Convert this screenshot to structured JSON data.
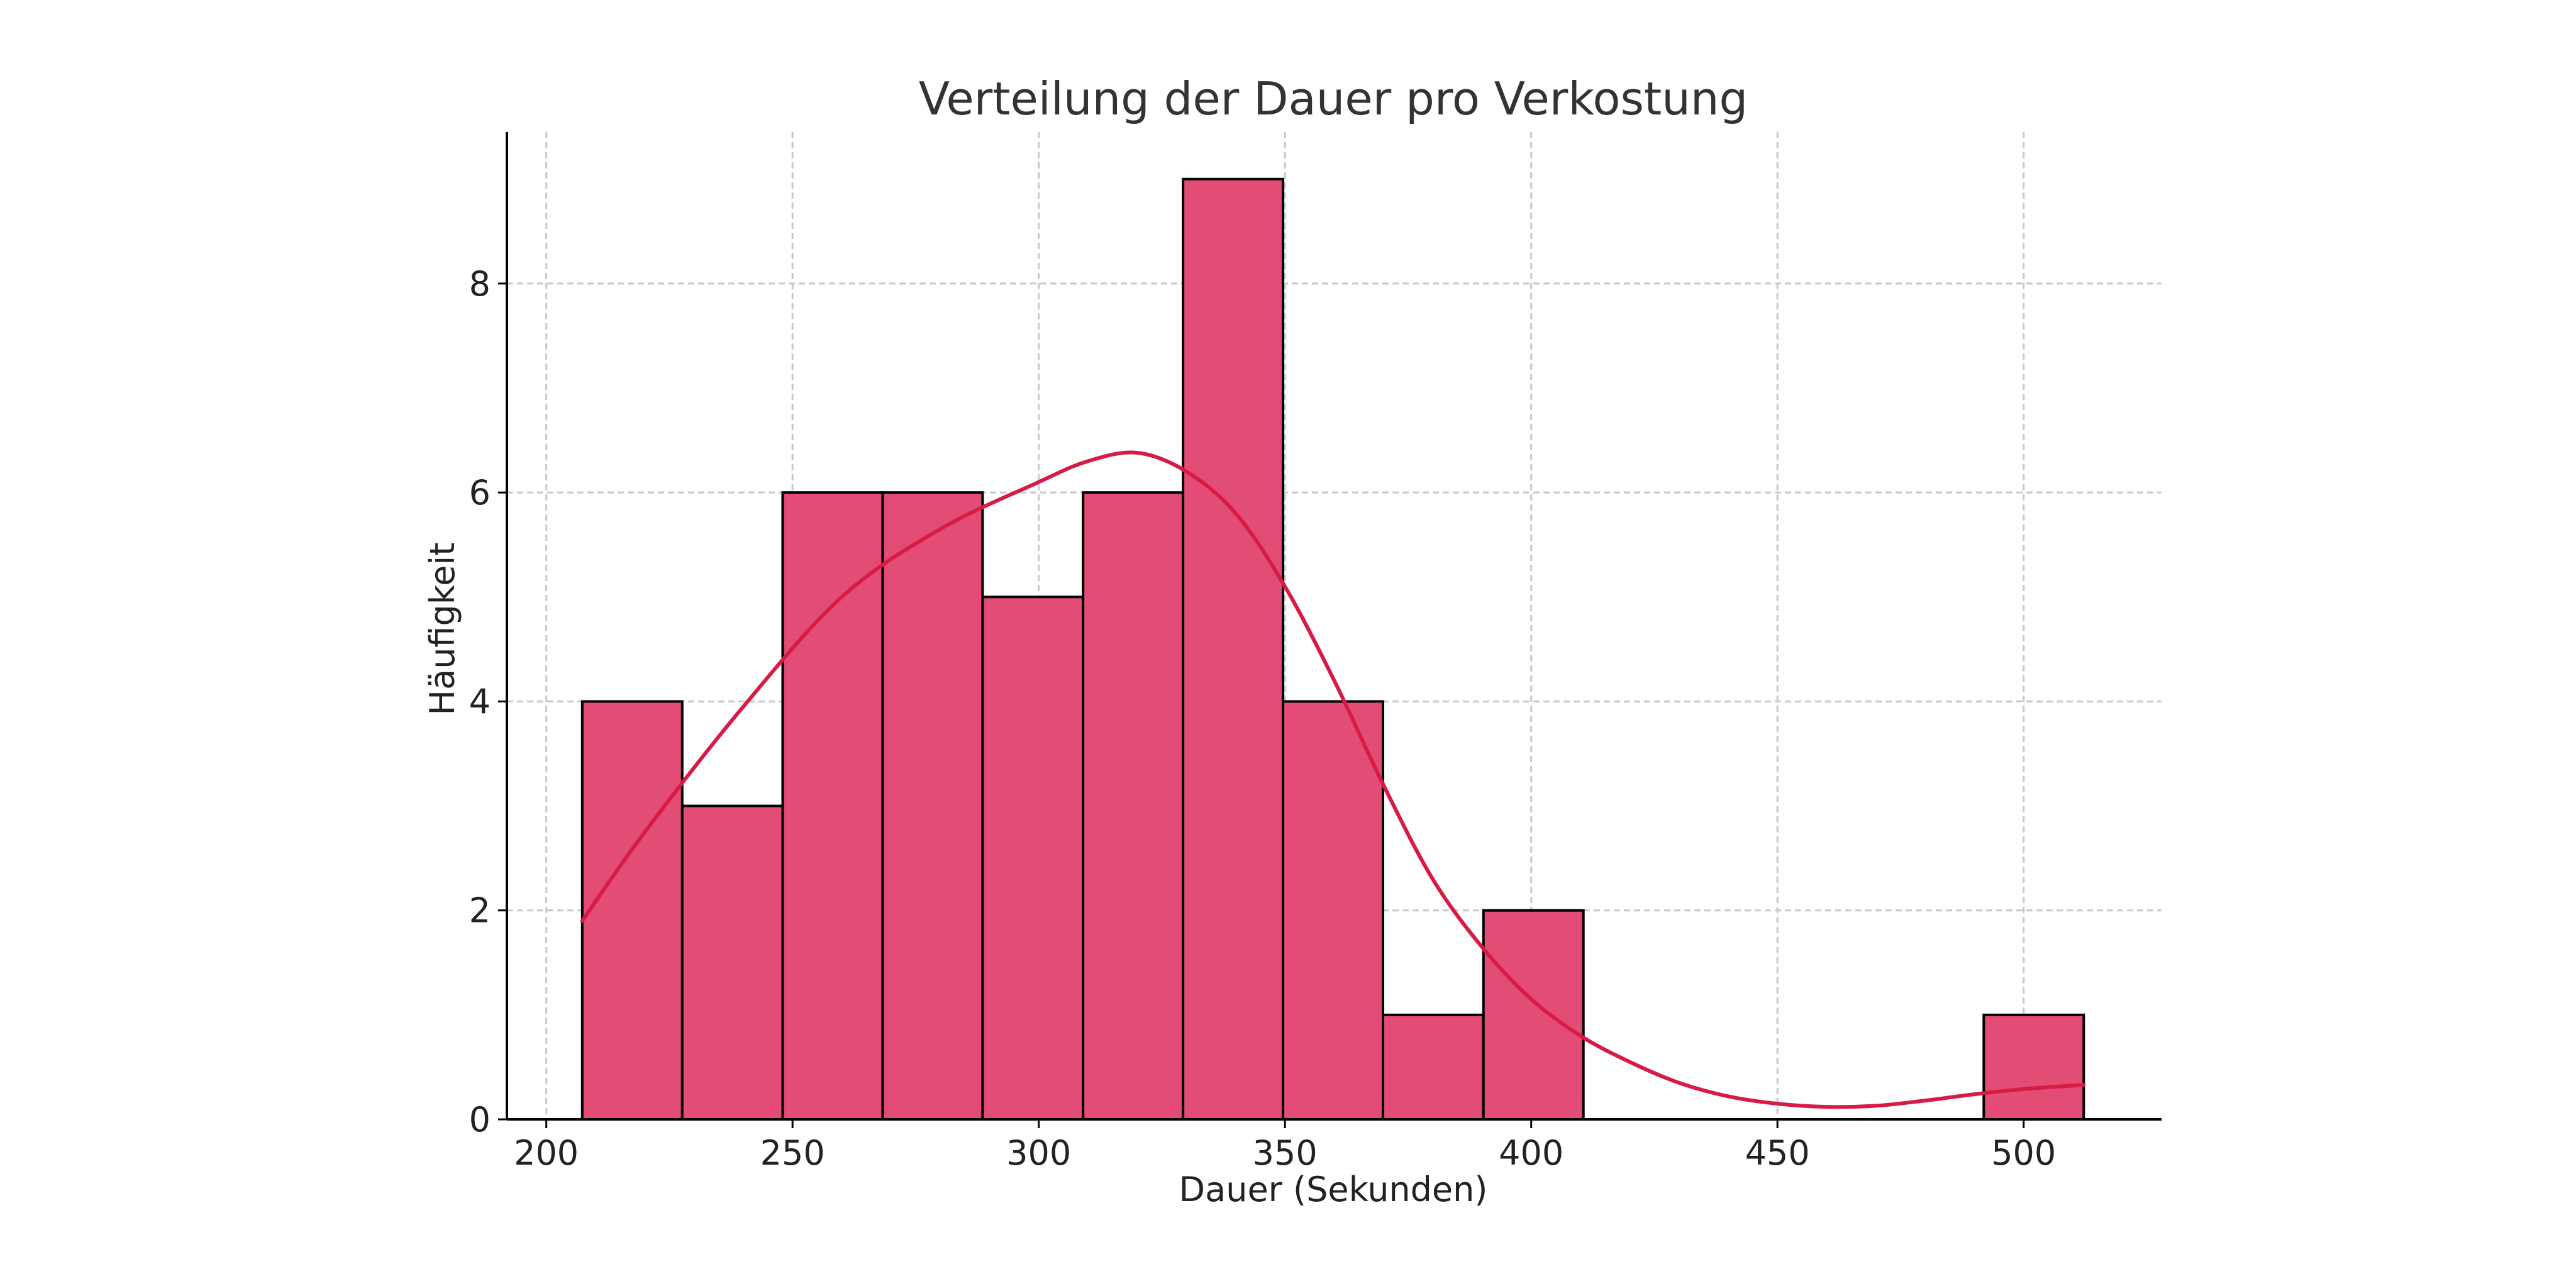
{
  "chart_data": {
    "type": "histogram",
    "title": "Verteilung der Dauer pro Verkostung",
    "xlabel": "Dauer (Sekunden)",
    "ylabel": "Häufigkeit",
    "xlim": [
      192,
      528
    ],
    "ylim": [
      0,
      9.45
    ],
    "xticks": [
      200,
      250,
      300,
      350,
      400,
      450,
      500
    ],
    "yticks": [
      0,
      2,
      4,
      6,
      8
    ],
    "grid": true,
    "bin_edges": [
      207.3,
      227.6,
      248.0,
      268.3,
      288.6,
      309.0,
      329.3,
      349.6,
      369.9,
      390.3,
      410.6,
      430.9,
      451.3,
      471.6,
      491.9,
      512.2
    ],
    "counts": [
      4,
      3,
      6,
      6,
      5,
      6,
      9,
      4,
      1,
      2,
      0,
      0,
      0,
      0,
      1
    ],
    "kde": {
      "x": [
        207.3,
        220,
        240,
        260,
        280,
        300,
        310,
        320,
        330,
        340,
        350,
        360,
        370,
        380,
        390,
        400,
        410,
        420,
        430,
        440,
        450,
        460,
        470,
        480,
        490,
        500,
        512.2
      ],
      "y": [
        1.9,
        2.75,
        3.95,
        5.0,
        5.65,
        6.1,
        6.3,
        6.38,
        6.2,
        5.8,
        5.1,
        4.2,
        3.2,
        2.3,
        1.65,
        1.15,
        0.8,
        0.55,
        0.35,
        0.22,
        0.15,
        0.12,
        0.13,
        0.18,
        0.24,
        0.29,
        0.33
      ]
    },
    "colors": {
      "bar_fill": "#e34c74",
      "bar_edge": "#000000",
      "kde_line": "#d81b45"
    }
  }
}
